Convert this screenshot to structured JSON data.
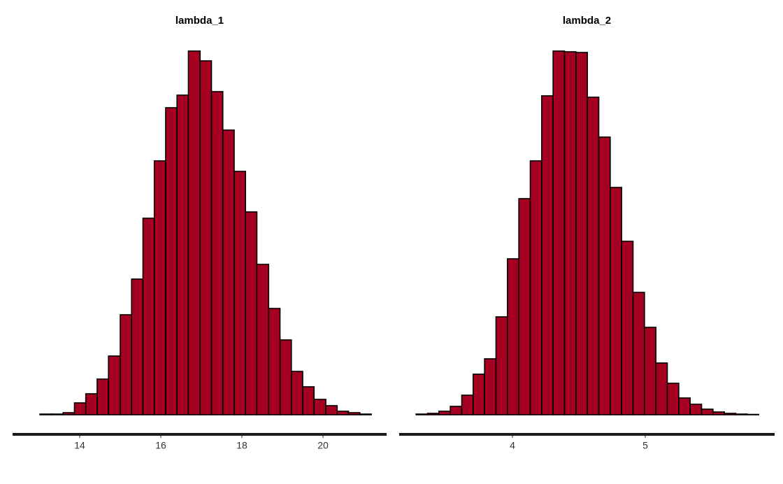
{
  "chart_data": [
    {
      "type": "histogram",
      "title": "lambda_1",
      "color": "#a50021",
      "bins": [
        12.74,
        13.02,
        13.3,
        13.59,
        13.87,
        14.15,
        14.43,
        14.71,
        15.0,
        15.28,
        15.56,
        15.84,
        16.12,
        16.4,
        16.68,
        16.97,
        17.25,
        17.53,
        17.81,
        18.09,
        18.37,
        18.66,
        18.94,
        19.22,
        19.5,
        19.78,
        20.07,
        20.35,
        20.63,
        20.91,
        21.19
      ],
      "counts": [
        0,
        1,
        1,
        3,
        17,
        30,
        51,
        84,
        143,
        194,
        281,
        363,
        439,
        457,
        520,
        506,
        462,
        407,
        348,
        290,
        215,
        152,
        107,
        62,
        40,
        22,
        13,
        5,
        3,
        1
      ],
      "xlim": [
        12.345,
        21.569
      ],
      "xticks": [
        14,
        16,
        18,
        20
      ],
      "ylim": [
        0,
        540
      ]
    },
    {
      "type": "histogram",
      "title": "lambda_2",
      "color": "#a50021",
      "bins": [
        3.274,
        3.36,
        3.446,
        3.532,
        3.618,
        3.704,
        3.79,
        3.876,
        3.962,
        4.048,
        4.134,
        4.22,
        4.306,
        4.392,
        4.478,
        4.564,
        4.65,
        4.736,
        4.822,
        4.908,
        4.994,
        5.08,
        5.166,
        5.252,
        5.338,
        5.424,
        5.51,
        5.596,
        5.682,
        5.768,
        5.854
      ],
      "counts": [
        1,
        2,
        5,
        12,
        28,
        58,
        80,
        140,
        223,
        309,
        363,
        456,
        520,
        519,
        518,
        454,
        397,
        325,
        248,
        175,
        125,
        74,
        45,
        24,
        15,
        8,
        4,
        2,
        1,
        0.5
      ],
      "xlim": [
        3.147,
        5.974
      ],
      "xticks": [
        4,
        5
      ],
      "ylim": [
        0,
        540
      ]
    }
  ]
}
